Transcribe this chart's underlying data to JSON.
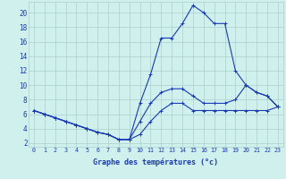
{
  "xlabel": "Graphe des températures (°c)",
  "background_color": "#cff0ec",
  "grid_color": "#aacfcb",
  "line_color": "#1a3ab5",
  "x_ticks": [
    0,
    1,
    2,
    3,
    4,
    5,
    6,
    7,
    8,
    9,
    10,
    11,
    12,
    13,
    14,
    15,
    16,
    17,
    18,
    19,
    20,
    21,
    22,
    23
  ],
  "y_ticks": [
    2,
    4,
    6,
    8,
    10,
    12,
    14,
    16,
    18,
    20
  ],
  "ylim": [
    1.5,
    21.5
  ],
  "xlim": [
    -0.5,
    23.5
  ],
  "line1_x": [
    0,
    1,
    2,
    3,
    4,
    5,
    6,
    7,
    8,
    9,
    10,
    11,
    12,
    13,
    14,
    15,
    16,
    17,
    18,
    19,
    20,
    21,
    22,
    23
  ],
  "line1_y": [
    6.5,
    6.0,
    5.5,
    5.0,
    4.5,
    4.0,
    3.5,
    3.2,
    2.5,
    2.5,
    3.2,
    5.0,
    6.5,
    7.5,
    7.5,
    6.5,
    6.5,
    6.5,
    6.5,
    6.5,
    6.5,
    6.5,
    6.5,
    7.0
  ],
  "line2_x": [
    0,
    1,
    2,
    3,
    4,
    5,
    6,
    7,
    8,
    9,
    10,
    11,
    12,
    13,
    14,
    15,
    16,
    17,
    18,
    19,
    20,
    21,
    22,
    23
  ],
  "line2_y": [
    6.5,
    6.0,
    5.5,
    5.0,
    4.5,
    4.0,
    3.5,
    3.2,
    2.5,
    2.5,
    5.0,
    7.5,
    9.0,
    9.5,
    9.5,
    8.5,
    7.5,
    7.5,
    7.5,
    8.0,
    10.0,
    9.0,
    8.5,
    7.0
  ],
  "line3_x": [
    0,
    1,
    2,
    3,
    4,
    5,
    6,
    7,
    8,
    9,
    10,
    11,
    12,
    13,
    14,
    15,
    16,
    17,
    18,
    19,
    20,
    21,
    22,
    23
  ],
  "line3_y": [
    6.5,
    6.0,
    5.5,
    5.0,
    4.5,
    4.0,
    3.5,
    3.2,
    2.5,
    2.5,
    7.5,
    11.5,
    16.5,
    16.5,
    18.5,
    21.0,
    20.0,
    18.5,
    18.5,
    12.0,
    10.0,
    9.0,
    8.5,
    7.0
  ]
}
